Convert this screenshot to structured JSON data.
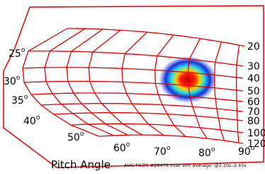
{
  "gyroradius_labels": [
    "20",
    "30",
    "40",
    "50",
    "60",
    "70",
    "80",
    "100",
    "120"
  ],
  "pitch_angle_labels": [
    "25",
    "30",
    "35",
    "40",
    "50",
    "60",
    "70",
    "80",
    "90"
  ],
  "degree_mark": "o",
  "axis_title": "Pitch Angle",
  "caption": "AUG FILD1 #26476 inter elm average: @2.20s–2.45s"
}
